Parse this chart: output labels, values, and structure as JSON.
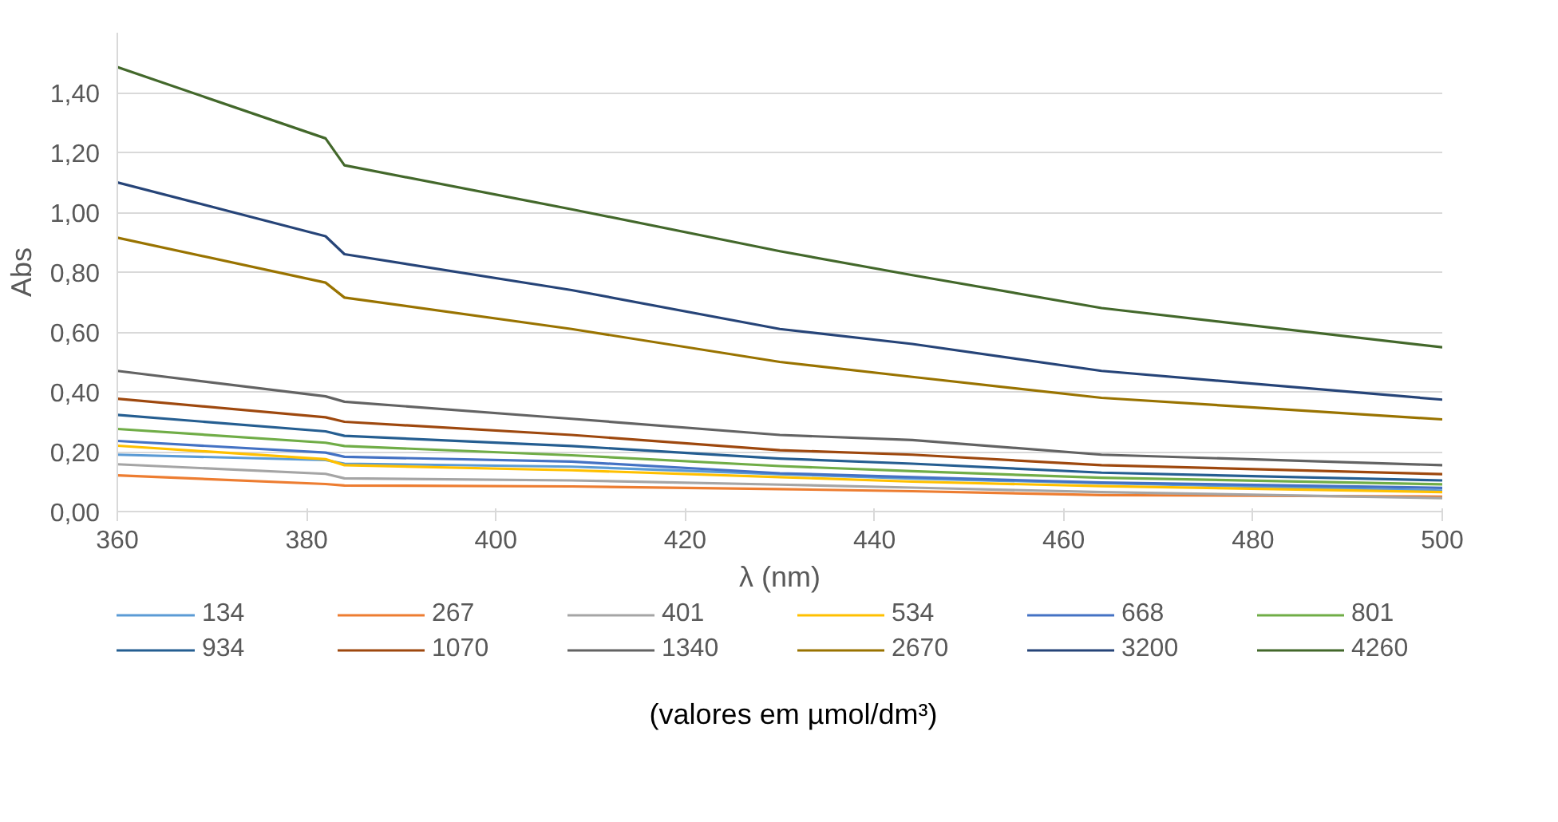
{
  "chart_data": {
    "type": "line",
    "xlabel": "λ (nm)",
    "ylabel": "Abs",
    "x": [
      360,
      382,
      384,
      408,
      430,
      444,
      464,
      500
    ],
    "xlim": [
      360,
      500
    ],
    "xticks": [
      360,
      380,
      400,
      420,
      440,
      460,
      480,
      500
    ],
    "ylim": [
      0,
      1.6
    ],
    "yticks": [
      {
        "value": 0,
        "label": "0,00"
      },
      {
        "value": 0.2,
        "label": "0,20"
      },
      {
        "value": 0.4,
        "label": "0,40"
      },
      {
        "value": 0.6,
        "label": "0,60"
      },
      {
        "value": 0.8,
        "label": "0,80"
      },
      {
        "value": 1.0,
        "label": "1,00"
      },
      {
        "value": 1.2,
        "label": "1,20"
      },
      {
        "value": 1.4,
        "label": "1,40"
      }
    ],
    "grid": "y",
    "legend": "bottom",
    "marker": "none",
    "line_style": "solid",
    "annotations": [
      "(valores em µmol/dm³)"
    ],
    "series": [
      {
        "name": "134",
        "color": "#5b9bd5",
        "values": [
          0.19,
          0.172,
          0.16,
          0.15,
          0.125,
          0.11,
          0.095,
          0.07
        ]
      },
      {
        "name": "267",
        "color": "#ed7d31",
        "values": [
          0.121,
          0.092,
          0.087,
          0.084,
          0.075,
          0.068,
          0.055,
          0.05
        ]
      },
      {
        "name": "401",
        "color": "#a5a5a5",
        "values": [
          0.158,
          0.126,
          0.111,
          0.104,
          0.09,
          0.08,
          0.065,
          0.045
        ]
      },
      {
        "name": "534",
        "color": "#ffc000",
        "values": [
          0.22,
          0.175,
          0.155,
          0.138,
          0.115,
          0.1,
          0.085,
          0.065
        ]
      },
      {
        "name": "668",
        "color": "#4472c4",
        "values": [
          0.236,
          0.197,
          0.183,
          0.167,
          0.128,
          0.115,
          0.097,
          0.079
        ]
      },
      {
        "name": "801",
        "color": "#70ad47",
        "values": [
          0.276,
          0.23,
          0.219,
          0.188,
          0.152,
          0.135,
          0.113,
          0.091
        ]
      },
      {
        "name": "934",
        "color": "#255e91",
        "values": [
          0.323,
          0.268,
          0.253,
          0.219,
          0.177,
          0.16,
          0.13,
          0.104
        ]
      },
      {
        "name": "1070",
        "color": "#9e480e",
        "values": [
          0.377,
          0.315,
          0.3,
          0.256,
          0.205,
          0.19,
          0.155,
          0.125
        ]
      },
      {
        "name": "1340",
        "color": "#636363",
        "values": [
          0.47,
          0.385,
          0.367,
          0.31,
          0.256,
          0.239,
          0.19,
          0.155
        ]
      },
      {
        "name": "2670",
        "color": "#997300",
        "values": [
          0.915,
          0.765,
          0.715,
          0.61,
          0.5,
          0.45,
          0.38,
          0.308
        ]
      },
      {
        "name": "3200",
        "color": "#264478",
        "values": [
          1.1,
          0.92,
          0.86,
          0.74,
          0.61,
          0.56,
          0.47,
          0.374
        ]
      },
      {
        "name": "4260",
        "color": "#43682b",
        "values": [
          1.485,
          1.247,
          1.157,
          1.01,
          0.87,
          0.79,
          0.68,
          0.549
        ]
      }
    ]
  }
}
